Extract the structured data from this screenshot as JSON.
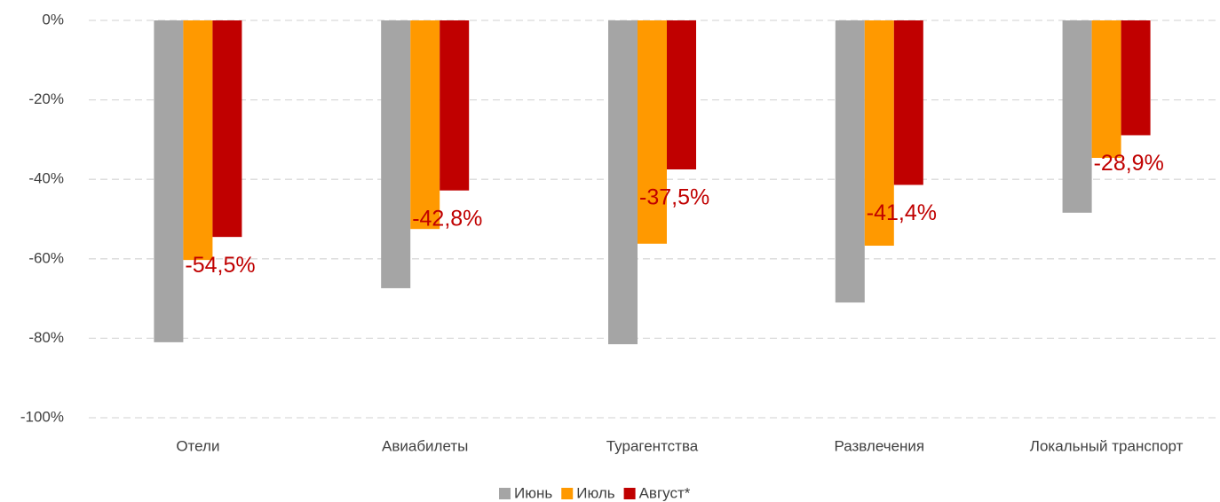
{
  "chart_data": {
    "type": "bar",
    "categories": [
      "Отели",
      "Авиабилеты",
      "Турагентства",
      "Развлечения",
      "Локальный транспорт"
    ],
    "series": [
      {
        "name": "Июнь",
        "color": "#a5a5a5",
        "values": [
          -81,
          -67.4,
          -81.5,
          -71,
          -48.4
        ]
      },
      {
        "name": "Июль",
        "color": "#ff9900",
        "values": [
          -60.3,
          -52.5,
          -56.2,
          -56.7,
          -34.6
        ]
      },
      {
        "name": "Август*",
        "color": "#c00000",
        "values": [
          -54.5,
          -42.8,
          -37.5,
          -41.4,
          -28.9
        ],
        "value_labels": [
          "-54,5%",
          "-42,8%",
          "-37,5%",
          "-41,4%",
          "-28,9%"
        ]
      }
    ],
    "ylim": [
      -100,
      0
    ],
    "yticks": [
      {
        "value": 0,
        "label": "0%"
      },
      {
        "value": -20,
        "label": "-20%"
      },
      {
        "value": -40,
        "label": "-40%"
      },
      {
        "value": -60,
        "label": "-60%"
      },
      {
        "value": -80,
        "label": "-80%"
      },
      {
        "value": -100,
        "label": "-100%"
      }
    ],
    "grid": true,
    "legend": "bottom"
  }
}
